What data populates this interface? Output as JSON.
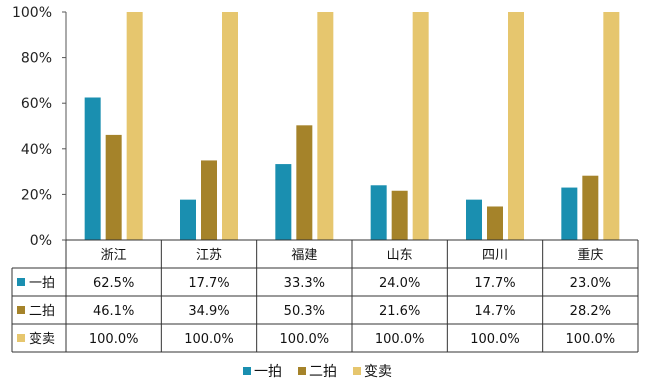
{
  "chart_data": {
    "type": "bar",
    "categories": [
      "浙江",
      "江苏",
      "福建",
      "山东",
      "四川",
      "重庆"
    ],
    "series": [
      {
        "name": "一拍",
        "values": [
          62.5,
          17.7,
          33.3,
          24.0,
          17.7,
          23.0
        ],
        "labels": [
          "62.5%",
          "17.7%",
          "33.3%",
          "24.0%",
          "17.7%",
          "23.0%"
        ],
        "color": "#1A8FB0"
      },
      {
        "name": "二拍",
        "values": [
          46.1,
          34.9,
          50.3,
          21.6,
          14.7,
          28.2
        ],
        "labels": [
          "46.1%",
          "34.9%",
          "50.3%",
          "21.6%",
          "14.7%",
          "28.2%"
        ],
        "color": "#A5832A"
      },
      {
        "name": "变卖",
        "values": [
          100.0,
          100.0,
          100.0,
          100.0,
          100.0,
          100.0
        ],
        "labels": [
          "100.0%",
          "100.0%",
          "100.0%",
          "100.0%",
          "100.0%",
          "100.0%"
        ],
        "color": "#E6C66E"
      }
    ],
    "yticks": [
      "100%",
      "80%",
      "60%",
      "40%",
      "20%",
      "0%"
    ],
    "ylim": [
      0,
      100
    ],
    "legend_position": "bottom",
    "data_table": true
  }
}
